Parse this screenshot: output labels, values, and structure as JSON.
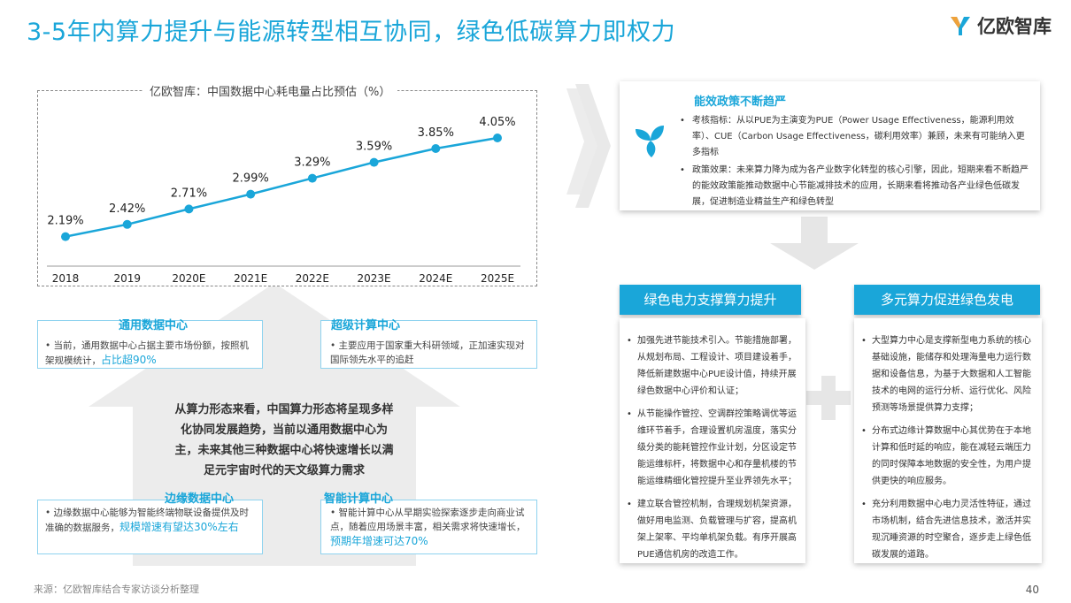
{
  "title": "3-5年内算力提升与能源转型相互协同，绿色低碳算力即权力",
  "logo": {
    "text": "亿欧智库",
    "icon": "yiou-logo-icon"
  },
  "chart": {
    "title": "亿欧智库：中国数据中心耗电量占比预估（%）"
  },
  "chart_data": {
    "type": "line",
    "title": "亿欧智库：中国数据中心耗电量占比预估（%）",
    "categories": [
      "2018",
      "2019",
      "2020E",
      "2021E",
      "2022E",
      "2023E",
      "2024E",
      "2025E"
    ],
    "value_labels": [
      "2.19%",
      "2.42%",
      "2.71%",
      "2.99%",
      "3.29%",
      "3.59%",
      "3.85%",
      "4.05%"
    ],
    "series": [
      {
        "values": [
          2.19,
          2.42,
          2.71,
          2.99,
          3.29,
          3.59,
          3.85,
          4.05
        ]
      }
    ],
    "color": "#1aa6d9",
    "ylim": [
      1.8,
      4.3
    ],
    "grid": false
  },
  "cards": {
    "general": {
      "title": "通用数据中心",
      "text": "当前，通用数据中心占据主要市场份额，按照机架规模统计，",
      "highlight": "占比超90%"
    },
    "super": {
      "title": "超级计算中心",
      "text": "主要应用于国家重大科研领域，正加速实现对国际领先水平的追赶"
    },
    "edge": {
      "title": "边缘数据中心",
      "text": "边缘数据中心能够为智能终端物联设备提供及时准确的数据服务，",
      "highlight": "规模增速有望达30%左右"
    },
    "smart": {
      "title": "智能计算中心",
      "text": "智能计算中心从早期实验探索逐步走向商业试点，随着应用场景丰富，相关需求将快速增长，",
      "highlight": "预期年增速可达70%"
    }
  },
  "center_text": "从算力形态来看，中国算力形态将呈现多样化协同发展趋势，当前以通用数据中心为主，未来其他三种数据中心将快速增长以满足元宇宙时代的天文级算力需求",
  "policy": {
    "icon": "leaf-icon",
    "title": "能效政策不断趋严",
    "items": [
      "考核指标：从以PUE为主演变为PUE（Power Usage Effectiveness，能源利用效率）、CUE（Carbon Usage Effectiveness，碳利用效率）兼顾，未来有可能纳入更多指标",
      "政策效果：未来算力降为成为各产业数字化转型的核心引擎，因此，短期来看不断趋严的能效政策能推动数据中心节能减排技术的应用，长期来看将推动各产业绿色低碳发展，促进制造业精益生产和绿色转型"
    ]
  },
  "green_power": {
    "title": "绿色电力支撑算力提升",
    "items": [
      "加强先进节能技术引入。节能措施部署，从规划布局、工程设计、项目建设着手，降低新建数据中心PUE设计值，持续开展绿色数据中心评价和认证；",
      "从节能操作管控、空调群控策略调优等运维环节着手，合理设置机房温度，落实分级分类的能耗管控作业计划，分区设定节能运维标杆，将数据中心和存量机楼的节能运维精细化管控提升至业界领先水平；",
      "建立联合管控机制，合理规划机架资源，做好用电监测、负载管理与扩容，提高机架上架率、平均单机架负载。有序开展高PUE通信机房的改造工作。"
    ]
  },
  "multi_power": {
    "title": "多元算力促进绿色发电",
    "items": [
      "大型算力中心是支撑新型电力系统的核心基础设施，能储存和处理海量电力运行数据和设备信息，为基于大数据和人工智能技术的电网的运行分析、运行优化、风险预测等场景提供算力支撑；",
      "分布式边缘计算数据中心其优势在于本地计算和低时延的响应，能在减轻云端压力的同时保障本地数据的安全性，为用户提供更快的响应服务。",
      "充分利用数据中心电力灵活性特征，通过市场机制，结合先进信息技术，激活并实现沉睡资源的时空聚合，逐步走上绿色低碳发展的道路。"
    ]
  },
  "source": "来源：亿欧智库结合专家访谈分析整理",
  "page_number": "40"
}
